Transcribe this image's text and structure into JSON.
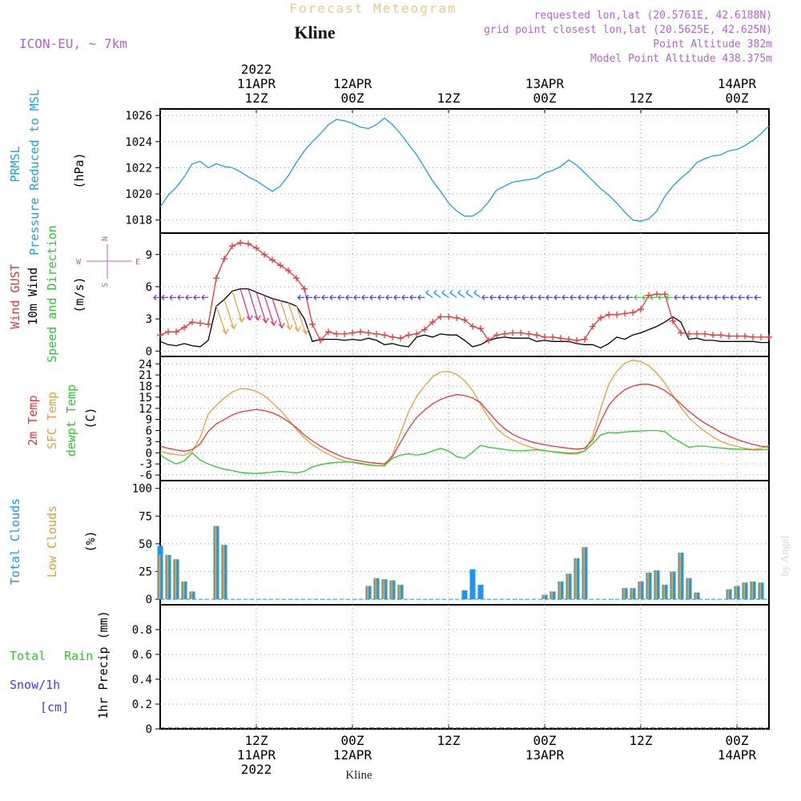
{
  "header": {
    "super_title": "Forecast Meteogram",
    "location": "Kline",
    "model": "ICON-EU, ~ 7km",
    "requested": "requested lon,lat (20.5761E, 42.6188N)",
    "grid_point": "grid point closest lon,lat (20.5625E, 42.625N)",
    "point_altitude": "Point Altitude 382m",
    "model_altitude": "Model Point Altitude 438.375m"
  },
  "footer_location": "Kline",
  "watermark": "by Angel",
  "time_axis": {
    "top_year": "2022",
    "top_labels": [
      {
        "hour": 12,
        "l1": "11APR",
        "l2": "12Z"
      },
      {
        "hour": 24,
        "l1": "12APR",
        "l2": "00Z"
      },
      {
        "hour": 36,
        "l1": "",
        "l2": "12Z"
      },
      {
        "hour": 48,
        "l1": "13APR",
        "l2": "00Z"
      },
      {
        "hour": 60,
        "l1": "",
        "l2": "12Z"
      },
      {
        "hour": 72,
        "l1": "14APR",
        "l2": "00Z"
      }
    ],
    "bottom_labels": [
      {
        "hour": 12,
        "l1": "12Z",
        "l2": "11APR",
        "l3": "2022"
      },
      {
        "hour": 24,
        "l1": "00Z",
        "l2": "12APR",
        "l3": ""
      },
      {
        "hour": 36,
        "l1": "12Z",
        "l2": "",
        "l3": ""
      },
      {
        "hour": 48,
        "l1": "00Z",
        "l2": "13APR",
        "l3": ""
      },
      {
        "hour": 60,
        "l1": "12Z",
        "l2": "",
        "l3": ""
      },
      {
        "hour": 72,
        "l1": "00Z",
        "l2": "14APR",
        "l3": ""
      }
    ]
  },
  "panels": {
    "pressure": {
      "label1": "PRMSL",
      "label2": "Pressure Reduced to MSL",
      "unit": "(hPa)",
      "ticks": [
        "1018",
        "1020",
        "1022",
        "1024",
        "1026"
      ]
    },
    "wind": {
      "label1": "Wind GUST",
      "label2": "10m Wind",
      "label3": "Speed and Direction",
      "unit": "(m/s)",
      "ticks": [
        "0",
        "3",
        "6",
        "9"
      ],
      "compass": {
        "n": "N",
        "s": "S",
        "w": "W",
        "e": "E"
      }
    },
    "temp": {
      "label1": "2m Temp",
      "label2": "SFC Temp",
      "label3": "dewpt Temp",
      "unit": "(C)",
      "ticks": [
        "-6",
        "-3",
        "0",
        "3",
        "6",
        "9",
        "12",
        "15",
        "18",
        "21",
        "24"
      ]
    },
    "clouds": {
      "label1": "Total Clouds",
      "label2": "Low Clouds",
      "unit": "(%)",
      "ticks": [
        "0",
        "25",
        "50",
        "75",
        "100"
      ]
    },
    "precip": {
      "label1": "Total",
      "label1b": "Rain",
      "label2": "Snow/1h",
      "label3": "[cm]",
      "unit": "1hr Precip (mm)",
      "ticks": [
        "0",
        "0.2",
        "0.4",
        "0.6",
        "0.8"
      ]
    }
  },
  "colors": {
    "pressure": "#1ea0e6",
    "gust": "#e6393c",
    "wind10m": "#000000",
    "t2m": "#e6393c",
    "sfc": "#e6a03c",
    "dew": "#2ec82e",
    "total_clouds": "#1e96f0",
    "low_clouds": "#dca032",
    "purple": "#b464d2",
    "cyan": "#1ea0e6",
    "rain": "#2ec82e",
    "snow": "#3c3cff",
    "title_orange": "#f0c882"
  },
  "chart_data": [
    {
      "type": "line",
      "title": "PRMSL Pressure Reduced to MSL",
      "ylabel": "(hPa)",
      "ylim": [
        1017,
        1026.5
      ],
      "x_hours": [
        0,
        1,
        2,
        3,
        4,
        5,
        6,
        7,
        8,
        9,
        10,
        11,
        12,
        13,
        14,
        15,
        16,
        17,
        18,
        19,
        20,
        21,
        22,
        23,
        24,
        25,
        26,
        27,
        28,
        29,
        30,
        31,
        32,
        33,
        34,
        35,
        36,
        37,
        38,
        39,
        40,
        41,
        42,
        43,
        44,
        45,
        46,
        47,
        48,
        49,
        50,
        51,
        52,
        53,
        54,
        55,
        56,
        57,
        58,
        59,
        60,
        61,
        62,
        63,
        64,
        65,
        66,
        67,
        68,
        69,
        70,
        71,
        72,
        73,
        74,
        75,
        76
      ],
      "series": [
        {
          "name": "PRMSL",
          "values": [
            1019.0,
            1019.9,
            1020.5,
            1021.3,
            1022.3,
            1022.5,
            1022.0,
            1022.3,
            1022.1,
            1022.0,
            1021.7,
            1021.3,
            1021.0,
            1020.6,
            1020.2,
            1020.6,
            1021.4,
            1022.4,
            1023.3,
            1024.0,
            1024.6,
            1025.3,
            1025.7,
            1025.6,
            1025.4,
            1025.1,
            1025.0,
            1025.3,
            1025.8,
            1025.3,
            1024.6,
            1023.8,
            1023.0,
            1022.0,
            1021.0,
            1020.2,
            1019.3,
            1018.7,
            1018.3,
            1018.3,
            1018.7,
            1019.4,
            1020.3,
            1020.6,
            1020.9,
            1021.0,
            1021.1,
            1021.2,
            1021.6,
            1021.8,
            1022.1,
            1022.6,
            1022.2,
            1021.6,
            1021.0,
            1020.4,
            1019.9,
            1019.3,
            1018.6,
            1018.0,
            1017.9,
            1018.1,
            1018.7,
            1019.8,
            1020.6,
            1021.2,
            1021.7,
            1022.4,
            1022.7,
            1022.9,
            1023.0,
            1023.3,
            1023.4,
            1023.7,
            1024.1,
            1024.6,
            1025.2
          ]
        }
      ]
    },
    {
      "type": "line",
      "title": "Wind GUST / 10m Wind Speed and Direction",
      "ylabel": "(m/s)",
      "ylim": [
        -0.5,
        11
      ],
      "x_hours": [
        0,
        1,
        2,
        3,
        4,
        5,
        6,
        7,
        8,
        9,
        10,
        11,
        12,
        13,
        14,
        15,
        16,
        17,
        18,
        19,
        20,
        21,
        22,
        23,
        24,
        25,
        26,
        27,
        28,
        29,
        30,
        31,
        32,
        33,
        34,
        35,
        36,
        37,
        38,
        39,
        40,
        41,
        42,
        43,
        44,
        45,
        46,
        47,
        48,
        49,
        50,
        51,
        52,
        53,
        54,
        55,
        56,
        57,
        58,
        59,
        60,
        61,
        62,
        63,
        64,
        65,
        66,
        67,
        68,
        69,
        70,
        71,
        72,
        73,
        74,
        75,
        76
      ],
      "series": [
        {
          "name": "Wind GUST",
          "values": [
            1.5,
            1.8,
            1.8,
            2.2,
            2.7,
            2.6,
            2.5,
            6.8,
            8.6,
            9.8,
            10.1,
            10.0,
            9.6,
            9.0,
            8.5,
            8.0,
            7.5,
            6.8,
            5.8,
            2.5,
            1.0,
            1.8,
            1.6,
            1.6,
            1.7,
            1.8,
            1.7,
            1.6,
            1.5,
            1.3,
            1.2,
            1.5,
            1.6,
            2.0,
            2.7,
            3.2,
            3.2,
            3.1,
            2.9,
            2.3,
            2.1,
            1.0,
            1.5,
            1.6,
            1.7,
            1.7,
            1.6,
            1.5,
            1.3,
            1.3,
            1.2,
            1.1,
            1.0,
            1.1,
            2.3,
            3.1,
            3.4,
            3.4,
            3.5,
            3.6,
            3.9,
            5.2,
            5.3,
            5.3,
            2.8,
            1.7,
            1.6,
            1.6,
            1.6,
            1.5,
            1.5,
            1.4,
            1.4,
            1.4,
            1.3,
            1.3,
            1.3
          ]
        },
        {
          "name": "10m Wind",
          "values": [
            0.9,
            0.6,
            0.5,
            0.7,
            0.5,
            0.4,
            1.0,
            4.2,
            4.8,
            5.6,
            5.8,
            5.8,
            5.5,
            5.2,
            4.9,
            4.7,
            4.5,
            4.2,
            3.0,
            0.9,
            1.1,
            1.1,
            1.1,
            1.0,
            1.1,
            1.0,
            1.2,
            1.0,
            0.6,
            0.7,
            0.5,
            0.4,
            1.3,
            1.5,
            1.3,
            1.6,
            1.5,
            1.5,
            1.0,
            0.4,
            0.6,
            1.0,
            1.2,
            1.3,
            1.2,
            1.2,
            1.2,
            0.9,
            1.0,
            0.9,
            0.9,
            0.9,
            0.7,
            0.6,
            0.6,
            0.3,
            0.7,
            1.3,
            1.1,
            1.5,
            1.7,
            2.0,
            2.3,
            2.7,
            3.2,
            2.7,
            1.1,
            1.2,
            1.0,
            1.0,
            0.9,
            0.9,
            0.9,
            0.9,
            0.9,
            0.8,
            0.8
          ]
        }
      ]
    },
    {
      "type": "line",
      "title": "2m Temp / SFC Temp / dewpt Temp",
      "ylabel": "(C)",
      "ylim": [
        -7.5,
        26
      ],
      "x_hours": [
        0,
        1,
        2,
        3,
        4,
        5,
        6,
        7,
        8,
        9,
        10,
        11,
        12,
        13,
        14,
        15,
        16,
        17,
        18,
        19,
        20,
        21,
        22,
        23,
        24,
        25,
        26,
        27,
        28,
        29,
        30,
        31,
        32,
        33,
        34,
        35,
        36,
        37,
        38,
        39,
        40,
        41,
        42,
        43,
        44,
        45,
        46,
        47,
        48,
        49,
        50,
        51,
        52,
        53,
        54,
        55,
        56,
        57,
        58,
        59,
        60,
        61,
        62,
        63,
        64,
        65,
        66,
        67,
        68,
        69,
        70,
        71,
        72,
        73,
        74,
        75,
        76
      ],
      "series": [
        {
          "name": "2m Temp",
          "values": [
            1.8,
            1.2,
            0.8,
            0.4,
            0.9,
            2.4,
            5.8,
            7.8,
            9.0,
            10.2,
            11.0,
            11.4,
            11.7,
            11.4,
            10.8,
            9.8,
            8.4,
            6.8,
            4.8,
            3.2,
            1.8,
            0.6,
            -0.4,
            -1.3,
            -1.8,
            -2.2,
            -2.6,
            -2.8,
            -3.0,
            -1.0,
            2.8,
            6.5,
            9.5,
            11.5,
            13.2,
            14.4,
            15.2,
            15.7,
            15.5,
            14.8,
            13.5,
            11.0,
            8.5,
            6.5,
            5.0,
            4.0,
            3.2,
            2.6,
            2.2,
            1.8,
            1.5,
            1.2,
            1.0,
            1.2,
            3.5,
            8.5,
            12.8,
            15.3,
            17.0,
            18.0,
            18.5,
            18.5,
            17.9,
            16.8,
            15.2,
            13.2,
            11.2,
            9.5,
            8.0,
            6.8,
            5.5,
            4.5,
            3.6,
            2.9,
            2.3,
            1.8,
            1.5
          ]
        },
        {
          "name": "SFC Temp",
          "values": [
            0.5,
            -0.2,
            -0.5,
            -0.7,
            0.4,
            4.2,
            10.5,
            12.8,
            14.8,
            16.4,
            17.3,
            17.2,
            16.6,
            15.4,
            13.5,
            11.5,
            9.0,
            6.3,
            4.0,
            2.2,
            0.8,
            -0.4,
            -1.4,
            -2.2,
            -2.6,
            -3.0,
            -3.3,
            -3.5,
            -3.6,
            -0.5,
            5.2,
            11.0,
            15.2,
            18.0,
            20.5,
            21.8,
            22.0,
            21.2,
            19.5,
            16.8,
            13.0,
            9.5,
            6.6,
            4.7,
            3.5,
            2.5,
            1.7,
            1.0,
            0.6,
            0.3,
            0.0,
            -0.3,
            -0.4,
            0.5,
            4.5,
            12.0,
            18.5,
            22.0,
            24.2,
            25.0,
            24.6,
            23.5,
            21.5,
            18.8,
            15.5,
            12.3,
            9.5,
            7.5,
            5.8,
            4.3,
            3.1,
            2.3,
            1.7,
            1.2,
            0.9,
            1.2,
            2.0
          ]
        },
        {
          "name": "dewpt Temp",
          "values": [
            -0.5,
            -2.0,
            -3.0,
            -2.2,
            0.0,
            -2.0,
            -3.0,
            -3.8,
            -4.4,
            -4.8,
            -5.3,
            -5.5,
            -5.6,
            -5.4,
            -5.2,
            -5.0,
            -5.2,
            -5.4,
            -5.0,
            -3.8,
            -3.2,
            -2.8,
            -2.6,
            -2.5,
            -2.5,
            -2.8,
            -3.2,
            -3.5,
            -3.4,
            -1.5,
            -0.6,
            -0.3,
            -0.6,
            -0.3,
            0.5,
            1.2,
            0.5,
            -1.0,
            -1.5,
            0.2,
            2.0,
            1.5,
            1.2,
            0.9,
            0.6,
            0.5,
            0.7,
            0.8,
            0.6,
            0.3,
            0.1,
            -0.1,
            0.0,
            0.5,
            2.5,
            4.8,
            5.5,
            5.4,
            5.6,
            5.8,
            5.9,
            6.0,
            6.0,
            5.7,
            4.0,
            2.8,
            1.5,
            1.8,
            1.8,
            1.5,
            1.3,
            1.1,
            1.0,
            0.9,
            0.8,
            0.8,
            1.0
          ]
        }
      ]
    },
    {
      "type": "bar",
      "title": "Total Clouds / Low Clouds",
      "ylabel": "(%)",
      "ylim": [
        -5,
        107
      ],
      "bars": [
        {
          "hour": 0,
          "total": 48,
          "low": 40
        },
        {
          "hour": 1,
          "total": 40,
          "low": 40
        },
        {
          "hour": 2,
          "total": 36,
          "low": 36
        },
        {
          "hour": 3,
          "total": 16,
          "low": 16
        },
        {
          "hour": 4,
          "total": 7,
          "low": 7
        },
        {
          "hour": 7,
          "total": 66,
          "low": 66
        },
        {
          "hour": 8,
          "total": 49,
          "low": 49
        },
        {
          "hour": 26,
          "total": 12,
          "low": 12
        },
        {
          "hour": 27,
          "total": 19,
          "low": 19
        },
        {
          "hour": 28,
          "total": 18,
          "low": 18
        },
        {
          "hour": 29,
          "total": 17,
          "low": 17
        },
        {
          "hour": 30,
          "total": 13,
          "low": 13
        },
        {
          "hour": 38,
          "total": 8,
          "low": 0
        },
        {
          "hour": 39,
          "total": 27,
          "low": 0
        },
        {
          "hour": 40,
          "total": 13,
          "low": 0
        },
        {
          "hour": 48,
          "total": 4,
          "low": 4
        },
        {
          "hour": 49,
          "total": 7,
          "low": 7
        },
        {
          "hour": 50,
          "total": 16,
          "low": 16
        },
        {
          "hour": 51,
          "total": 23,
          "low": 23
        },
        {
          "hour": 52,
          "total": 37,
          "low": 37
        },
        {
          "hour": 53,
          "total": 47,
          "low": 47
        },
        {
          "hour": 58,
          "total": 10,
          "low": 10
        },
        {
          "hour": 59,
          "total": 10,
          "low": 10
        },
        {
          "hour": 60,
          "total": 16,
          "low": 16
        },
        {
          "hour": 61,
          "total": 24,
          "low": 24
        },
        {
          "hour": 62,
          "total": 26,
          "low": 26
        },
        {
          "hour": 63,
          "total": 13,
          "low": 13
        },
        {
          "hour": 64,
          "total": 25,
          "low": 25
        },
        {
          "hour": 65,
          "total": 42,
          "low": 42
        },
        {
          "hour": 66,
          "total": 19,
          "low": 19
        },
        {
          "hour": 67,
          "total": 6,
          "low": 6
        },
        {
          "hour": 71,
          "total": 9,
          "low": 9
        },
        {
          "hour": 72,
          "total": 12,
          "low": 12
        },
        {
          "hour": 73,
          "total": 15,
          "low": 15
        },
        {
          "hour": 74,
          "total": 16,
          "low": 16
        },
        {
          "hour": 75,
          "total": 15,
          "low": 15
        }
      ]
    },
    {
      "type": "bar",
      "title": "1hr Precip (mm)",
      "ylabel": "1hr Precip (mm)",
      "ylim": [
        0,
        1.0
      ],
      "values": []
    }
  ]
}
